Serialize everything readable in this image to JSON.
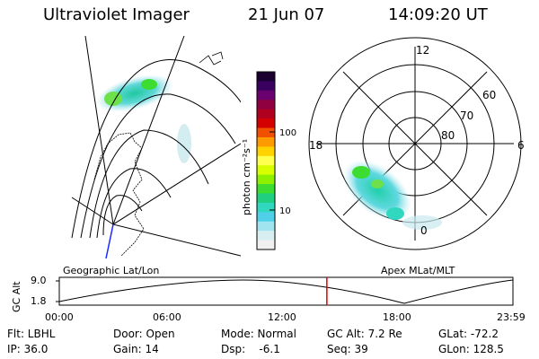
{
  "header": {
    "instrument": "Ultraviolet Imager",
    "date": "21 Jun 07",
    "time": "14:09:20 UT"
  },
  "colorbar": {
    "unit_label": "photon cm⁻²s⁻¹",
    "tick_100": "100",
    "tick_10": "10",
    "colors_top_to_bottom": [
      "#1a0030",
      "#3a0060",
      "#6a0070",
      "#900040",
      "#b00020",
      "#d40000",
      "#f05000",
      "#ff9a00",
      "#ffd200",
      "#ffff50",
      "#d8ff00",
      "#8cf000",
      "#3cdc30",
      "#20d080",
      "#30d8c0",
      "#50d0e8",
      "#a0e4f0",
      "#d8eef0",
      "#f0f0f0"
    ]
  },
  "panels": {
    "geo_label": "Geographic Lat/Lon",
    "mag_label": "Apex MLat/MLT",
    "mlt_12": "12",
    "mlt_18": "18",
    "mlt_6": "6",
    "mlt_0": "0",
    "lat_60": "60",
    "lat_70": "70",
    "lat_80": "80"
  },
  "timeline": {
    "y_label": "GC Alt",
    "y_max": "9.0",
    "y_min": "1.8",
    "ticks": [
      "00:00",
      "06:00",
      "12:00",
      "18:00",
      "23:59"
    ],
    "current_time_fraction": 0.5898,
    "marker_color": "#e00000"
  },
  "info": {
    "filter": "Flt: LBHL",
    "ip": "IP: 36.0",
    "door": "Door: Open",
    "gain": "Gain: 14",
    "mode": "Mode: Normal",
    "dsp": "Dsp:    -6.1",
    "gc_alt": "GC Alt: 7.2 Re",
    "seq": "Seq: 39",
    "glat": "GLat: -72.2",
    "glon": "GLon: 128.5"
  }
}
